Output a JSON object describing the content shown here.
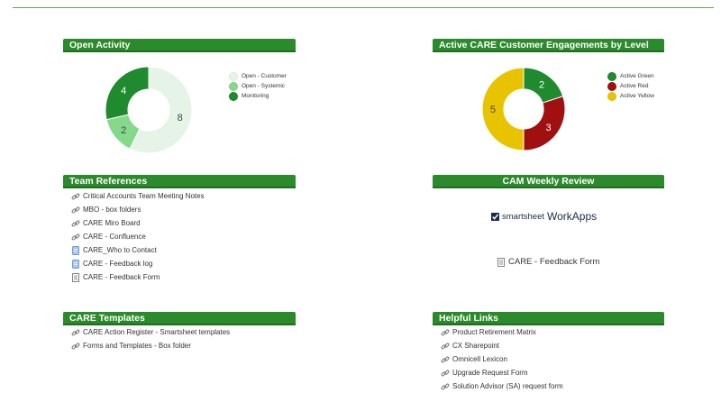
{
  "panels": {
    "open_activity": {
      "title": "Open Activity",
      "chart_data": {
        "type": "pie",
        "categories": [
          "Open - Customer",
          "Open - Systemic",
          "Monitoring"
        ],
        "values": [
          8,
          2,
          4
        ],
        "colors": [
          "#e6f4e8",
          "#85d98a",
          "#1f8a2e"
        ],
        "legend": "right"
      }
    },
    "engagements": {
      "title": "Active CARE Customer Engagements by Level",
      "chart_data": {
        "type": "pie",
        "categories": [
          "Active Green",
          "Active Red",
          "Active Yellow"
        ],
        "values": [
          2,
          3,
          5
        ],
        "colors": [
          "#1f8a2e",
          "#a01010",
          "#e8c400"
        ],
        "legend": "right"
      }
    },
    "team_references": {
      "title": "Team References",
      "links": [
        {
          "label": "Critical Accounts Team Meeting Notes",
          "icon": "link-icon"
        },
        {
          "label": "MBO - box folders",
          "icon": "link-icon"
        },
        {
          "label": "CARE Miro Board",
          "icon": "link-icon"
        },
        {
          "label": "CARE - Confluence",
          "icon": "link-icon"
        },
        {
          "label": "CARE_Who to Contact",
          "icon": "document-icon"
        },
        {
          "label": "CARE - Feedback log",
          "icon": "document-icon"
        },
        {
          "label": "CARE - Feedback Form",
          "icon": "form-icon"
        }
      ]
    },
    "cam_weekly_review": {
      "title": "CAM Weekly Review",
      "brand_name": "smartsheet",
      "brand_product": "WorkApps",
      "form_link": "CARE - Feedback Form"
    },
    "care_templates": {
      "title": "CARE Templates",
      "links": [
        {
          "label": "CARE Action Register - Smartsheet templates",
          "icon": "link-icon"
        },
        {
          "label": "Forms and Templates - Box folder",
          "icon": "link-icon"
        }
      ]
    },
    "helpful_links": {
      "title": "Helpful Links",
      "links": [
        {
          "label": "Product Retirement Matrix",
          "icon": "link-icon"
        },
        {
          "label": "CX Sharepoint",
          "icon": "link-icon"
        },
        {
          "label": "Omnicell Lexicon",
          "icon": "link-icon"
        },
        {
          "label": "Upgrade Request Form",
          "icon": "link-icon"
        },
        {
          "label": "Solution Advisor (SA) request form",
          "icon": "link-icon"
        }
      ]
    }
  }
}
